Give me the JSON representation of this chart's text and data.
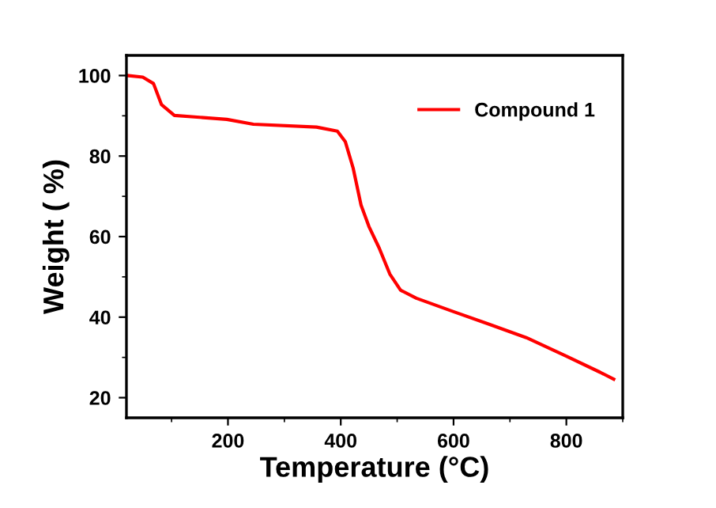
{
  "chart_data": {
    "type": "line",
    "xlabel": "Temperature (°C)",
    "ylabel": "Weight ( %)",
    "xlim": [
      20,
      900
    ],
    "ylim": [
      15,
      105
    ],
    "xticks": [
      200,
      400,
      600,
      800
    ],
    "yticks": [
      20,
      40,
      60,
      80,
      100
    ],
    "legend": "top right",
    "grid": false,
    "marker": "none",
    "line_style": "solid",
    "series": [
      {
        "name": "Compound 1",
        "color": "#ff0000",
        "x": [
          21,
          49,
          68,
          82,
          105,
          198,
          245,
          357,
          394,
          408,
          422,
          436,
          450,
          468,
          487,
          506,
          534,
          599,
          664,
          729,
          800,
          860,
          884
        ],
        "values": [
          100,
          99.6,
          98,
          92.8,
          90.1,
          89.1,
          87.9,
          87.2,
          86.2,
          83.6,
          77,
          67.8,
          62.5,
          57.2,
          50.7,
          46.7,
          44.7,
          41.4,
          38.2,
          34.9,
          30.3,
          26.3,
          24.6
        ]
      }
    ]
  }
}
